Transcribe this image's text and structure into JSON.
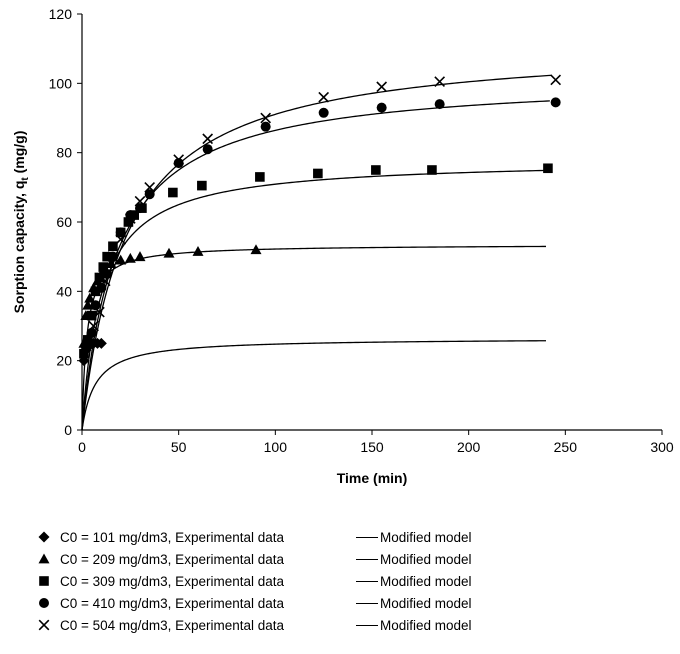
{
  "chart_data": {
    "type": "scatter",
    "xlabel": "Time (min)",
    "ylabel_main": "Sorption capacity, q",
    "ylabel_sub": "t",
    "ylabel_unit": " (mg/g)",
    "xlim": [
      0,
      300
    ],
    "ylim": [
      0,
      120
    ],
    "xticks": [
      0,
      50,
      100,
      150,
      200,
      250,
      300
    ],
    "yticks": [
      0,
      20,
      40,
      60,
      80,
      100,
      120
    ],
    "grid": false,
    "legend_position": "bottom",
    "series": [
      {
        "name": "C0 = 101 mg/dm3, Experimental data",
        "model_name": "Modified model",
        "marker": "diamond",
        "x": [
          1,
          2,
          3,
          4,
          5,
          6,
          8,
          10
        ],
        "y": [
          20,
          23,
          24,
          24.5,
          25,
          25,
          25,
          25
        ],
        "model_qe": 26.5,
        "model_h": 7,
        "model_xmax": 240
      },
      {
        "name": "C0 = 209 mg/dm3, Experimental data",
        "model_name": "Modified model",
        "marker": "triangle",
        "x": [
          1,
          2,
          3,
          4,
          6,
          8,
          10,
          12,
          15,
          20,
          25,
          30,
          45,
          60,
          90
        ],
        "y": [
          25,
          33,
          36,
          38,
          41,
          43,
          45,
          46,
          48,
          49,
          49.5,
          50,
          51,
          51.5,
          52
        ],
        "model_qe": 53.5,
        "model_h": 2.5,
        "model_xmax": 240
      },
      {
        "name": "C0 = 309 mg/dm3, Experimental data",
        "model_name": "Modified model",
        "marker": "square",
        "x": [
          1,
          3,
          5,
          7,
          9,
          11,
          13,
          16,
          20,
          24,
          27,
          31,
          47,
          62,
          92,
          122,
          152,
          181,
          241
        ],
        "y": [
          22,
          26,
          33,
          40,
          44,
          47,
          50,
          53,
          57,
          60,
          62,
          64,
          68.5,
          70.5,
          73,
          74,
          75,
          75,
          75.5
        ],
        "model_qe": 78,
        "model_h": 10,
        "model_xmax": 240
      },
      {
        "name": "C0 = 410 mg/dm3, Experimental data",
        "model_name": "Modified model",
        "marker": "circle",
        "x": [
          2,
          5,
          7,
          10,
          13,
          16,
          20,
          25,
          30,
          35,
          50,
          65,
          95,
          125,
          155,
          185,
          245
        ],
        "y": [
          24,
          28,
          36,
          41,
          45,
          50,
          57,
          62,
          64,
          68,
          77,
          81,
          87.5,
          91.5,
          93,
          94,
          94.5
        ],
        "model_qe": 102,
        "model_h": 18,
        "model_xmax": 242
      },
      {
        "name": "C0 = 504 mg/dm3, Experimental data",
        "model_name": "Modified model",
        "marker": "cross",
        "x": [
          3,
          6,
          9,
          12,
          16,
          20,
          25,
          30,
          35,
          50,
          65,
          95,
          125,
          155,
          185,
          245
        ],
        "y": [
          25,
          30,
          34,
          43,
          50,
          55,
          61,
          66,
          70,
          78,
          84,
          90,
          96,
          99,
          100.5,
          101
        ],
        "model_qe": 112,
        "model_h": 23,
        "model_xmax": 243
      }
    ]
  }
}
